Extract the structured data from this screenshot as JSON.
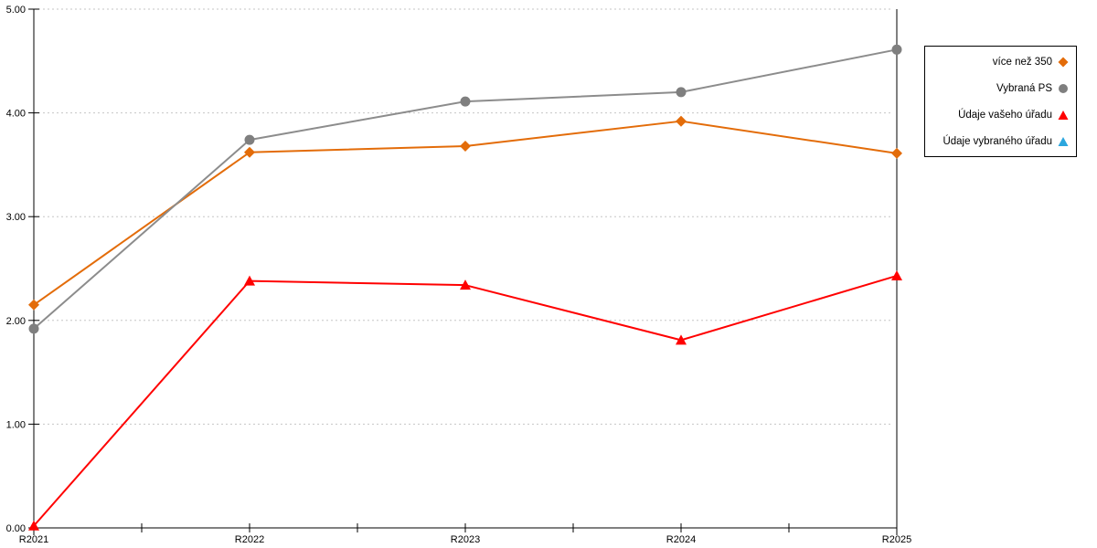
{
  "chart_data": {
    "type": "line",
    "title": "",
    "xlabel": "",
    "ylabel": "",
    "categories": [
      "R2021",
      "R2022",
      "R2023",
      "R2024",
      "R2025"
    ],
    "series": [
      {
        "name": "více než 350",
        "color": "#E36C09",
        "marker": "diamond",
        "values": [
          2.15,
          3.62,
          3.68,
          3.92,
          3.61
        ]
      },
      {
        "name": "Vybraná PS",
        "color": "#8C8C8C",
        "marker": "circle",
        "marker_color": "#7F7F7F",
        "values": [
          1.92,
          3.74,
          4.11,
          4.2,
          4.61
        ]
      },
      {
        "name": "Údaje vašeho úřadu",
        "color": "#FF0000",
        "marker": "triangle",
        "values": [
          0.02,
          2.38,
          2.34,
          1.81,
          2.43
        ]
      },
      {
        "name": "Údaje vybraného úřadu",
        "color": "#2BA6DE",
        "marker": "triangle",
        "values": []
      }
    ],
    "ylim": [
      0,
      5
    ],
    "ytick_step": 1,
    "ytick_labels": [
      "0.00",
      "1.00",
      "2.00",
      "3.00",
      "4.00",
      "5.00"
    ],
    "grid": "horizontal-dashed",
    "gridline_color": "#C6C6C6",
    "axis_color": "#000000",
    "legend_position": "top-right",
    "legend_border_color": "#000000"
  }
}
